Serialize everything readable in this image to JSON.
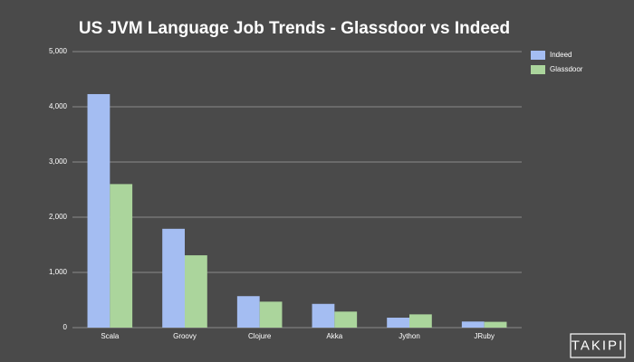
{
  "chart_data": {
    "type": "bar",
    "title": "US JVM Language Job Trends - Glassdoor vs Indeed",
    "categories": [
      "Scala",
      "Groovy",
      "Clojure",
      "Akka",
      "Jython",
      "JRuby"
    ],
    "series": [
      {
        "name": "Indeed",
        "color": "#a4bdf2",
        "values": [
          4230,
          1790,
          570,
          430,
          180,
          110
        ]
      },
      {
        "name": "Glassdoor",
        "color": "#abd59c",
        "values": [
          2600,
          1310,
          470,
          290,
          240,
          105
        ]
      }
    ],
    "ylim": [
      0,
      5000
    ],
    "yticks": [
      0,
      {
        "value": 1000,
        "label": "1,000"
      },
      {
        "value": 2000,
        "label": "2,000"
      },
      {
        "value": 3000,
        "label": "3,000"
      },
      {
        "value": 4000,
        "label": "4,000"
      },
      {
        "value": 5000,
        "label": "5,000"
      }
    ],
    "grid": true,
    "legend": "top-right"
  },
  "watermark": "TAKIPI"
}
